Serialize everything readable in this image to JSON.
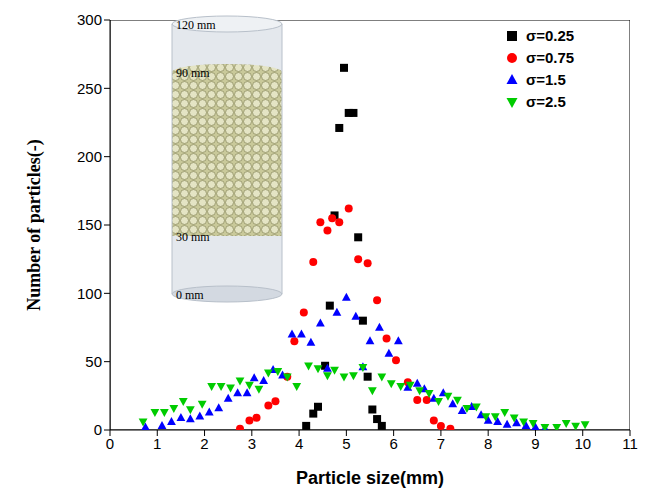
{
  "chart_data": {
    "type": "scatter",
    "x_label": "Particle size(mm)",
    "y_label": "Number of particles(-)",
    "xlim": [
      0,
      11
    ],
    "xticks": [
      0,
      1,
      2,
      3,
      4,
      5,
      6,
      7,
      8,
      9,
      10,
      11
    ],
    "ylim": [
      0,
      300
    ],
    "yticks": [
      0,
      50,
      100,
      150,
      200,
      250,
      300
    ],
    "legend": "upper right",
    "grid": false,
    "annotations": [
      "120 mm",
      "90 mm",
      "30 mm",
      "0 mm"
    ],
    "series": [
      {
        "name": "σ=0.25",
        "color": "#000000",
        "marker": "square",
        "x": [
          4.15,
          4.3,
          4.4,
          4.55,
          4.65,
          4.75,
          4.85,
          4.95,
          5.05,
          5.15,
          5.25,
          5.35,
          5.45,
          5.55,
          5.65,
          5.75
        ],
        "values": [
          3,
          12,
          17,
          47,
          91,
          157,
          221,
          265,
          232,
          232,
          141,
          80,
          39,
          15,
          8,
          3
        ]
      },
      {
        "name": "σ=0.75",
        "color": "#ff0000",
        "marker": "circle",
        "x": [
          2.75,
          2.95,
          3.1,
          3.35,
          3.5,
          3.75,
          3.9,
          4.1,
          4.3,
          4.45,
          4.6,
          4.7,
          4.85,
          5.05,
          5.25,
          5.45,
          5.65,
          5.85,
          6.05,
          6.3,
          6.5,
          6.7,
          6.85,
          7.0,
          7.2
        ],
        "values": [
          1,
          7,
          9,
          18,
          21,
          39,
          65,
          86,
          123,
          152,
          146,
          155,
          152,
          162,
          125,
          122,
          95,
          67,
          51,
          35,
          22,
          22,
          7,
          3,
          1
        ]
      },
      {
        "name": "σ=1.5",
        "color": "#0000ff",
        "marker": "triangle",
        "x": [
          0.75,
          1.1,
          1.3,
          1.5,
          1.7,
          1.9,
          2.1,
          2.3,
          2.5,
          2.7,
          2.9,
          3.05,
          3.25,
          3.45,
          3.65,
          3.85,
          4.05,
          4.25,
          4.45,
          4.6,
          4.8,
          5.0,
          5.2,
          5.35,
          5.5,
          5.7,
          5.9,
          6.1,
          6.3,
          6.5,
          6.65,
          6.85,
          7.05,
          7.25,
          7.45,
          7.65,
          7.85,
          8.0,
          8.2,
          8.4,
          8.6,
          8.8,
          9.0,
          9.2
        ],
        "values": [
          2,
          3,
          6,
          9,
          8,
          10,
          13,
          16,
          23,
          27,
          27,
          38,
          36,
          44,
          40,
          70,
          70,
          64,
          78,
          45,
          86,
          97,
          83,
          46,
          65,
          75,
          56,
          65,
          31,
          34,
          30,
          23,
          27,
          19,
          14,
          17,
          11,
          7,
          6,
          4,
          5,
          3,
          2,
          1
        ]
      },
      {
        "name": "σ=2.5",
        "color": "#00cc00",
        "marker": "triangle-down",
        "x": [
          0.7,
          0.95,
          1.15,
          1.35,
          1.55,
          1.7,
          1.95,
          2.15,
          2.35,
          2.55,
          2.75,
          2.95,
          3.15,
          3.35,
          3.55,
          3.75,
          3.95,
          4.2,
          4.4,
          4.6,
          4.75,
          4.95,
          5.15,
          5.35,
          5.55,
          5.75,
          5.95,
          6.15,
          6.35,
          6.55,
          6.75,
          6.95,
          7.15,
          7.35,
          7.55,
          7.75,
          7.95,
          8.15,
          8.35,
          8.55,
          8.75,
          8.95,
          9.2,
          9.45,
          9.65,
          9.85,
          10.05
        ],
        "values": [
          6,
          13,
          13,
          16,
          21,
          15,
          19,
          32,
          32,
          31,
          36,
          33,
          30,
          42,
          43,
          39,
          32,
          47,
          45,
          40,
          44,
          39,
          40,
          46,
          29,
          39,
          34,
          32,
          33,
          29,
          27,
          21,
          25,
          22,
          16,
          17,
          10,
          10,
          13,
          9,
          6,
          5,
          2,
          2,
          5,
          3,
          4
        ]
      }
    ]
  }
}
